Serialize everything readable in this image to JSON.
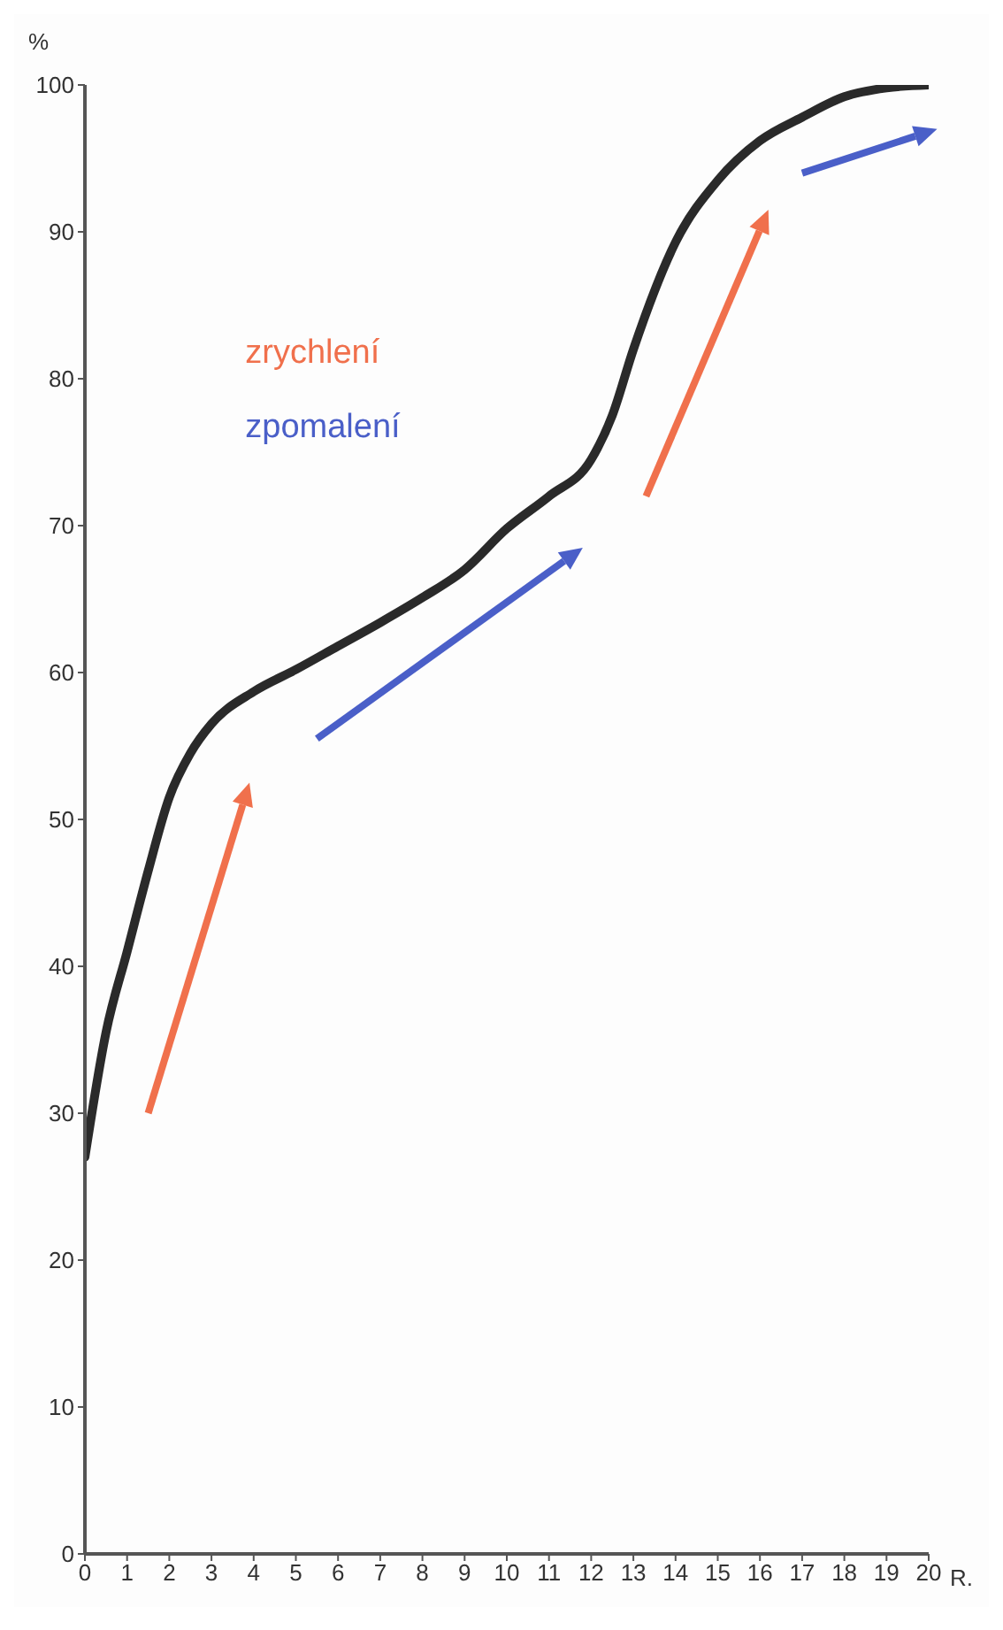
{
  "chart_data": {
    "type": "line",
    "xlabel": "R.",
    "ylabel": "%",
    "x": [
      0,
      0.5,
      1,
      1.5,
      2,
      2.5,
      3,
      4,
      5,
      6,
      7,
      8,
      9,
      10,
      11,
      12,
      12.5,
      13,
      14,
      15,
      16,
      17,
      18,
      19,
      20
    ],
    "series": [
      {
        "color": "#2a2a2a",
        "values": [
          27,
          35.5,
          41,
          46.5,
          51.5,
          54.5,
          56.5,
          58.7,
          60.2,
          61.8,
          63.4,
          65.1,
          67,
          69.8,
          72,
          74.5,
          77.5,
          82,
          89.3,
          93.5,
          96.2,
          97.8,
          99.2,
          99.8,
          100
        ]
      }
    ],
    "annotations": [
      "zrychlení",
      "zpomalení"
    ],
    "xlim": [
      0,
      20
    ],
    "xticks": [
      0,
      1,
      2,
      3,
      4,
      5,
      6,
      7,
      8,
      9,
      10,
      11,
      12,
      13,
      14,
      15,
      16,
      17,
      18,
      19,
      20
    ],
    "ylim": [
      0,
      100
    ],
    "yticks": [
      0,
      10,
      20,
      30,
      40,
      50,
      60,
      70,
      80,
      90,
      100
    ],
    "grid": false,
    "legend": false,
    "marker": "none",
    "line_style": "solid"
  }
}
